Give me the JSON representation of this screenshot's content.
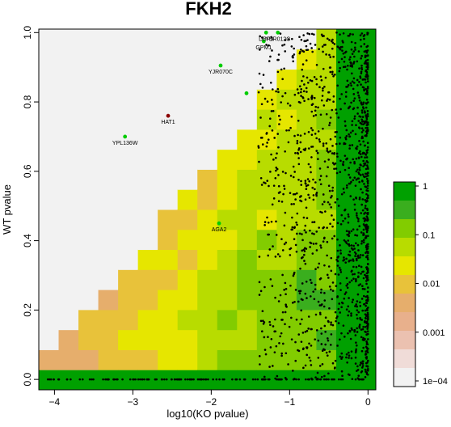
{
  "chart_data": {
    "type": "heatmap",
    "title": "FKH2",
    "xlabel": "log10(KO pvalue)",
    "ylabel": "WT pvalue",
    "xlim": [
      -4.2,
      0.1
    ],
    "ylim": [
      -0.03,
      1.01
    ],
    "x_ticks": [
      "−4",
      "−3",
      "−2",
      "−1",
      "0"
    ],
    "x_tick_values": [
      -4,
      -3,
      -2,
      -1,
      0
    ],
    "y_ticks": [
      "0.0",
      "0.2",
      "0.4",
      "0.6",
      "0.8",
      "1.0"
    ],
    "y_tick_values": [
      0.0,
      0.2,
      0.4,
      0.6,
      0.8,
      1.0
    ],
    "legend": {
      "labels": [
        "1",
        "0.1",
        "0.01",
        "0.001",
        "1e−04"
      ],
      "label_values": [
        1,
        0.1,
        0.01,
        0.001,
        0.0001
      ],
      "colors": [
        "#f2f2f2",
        "#f0dcd8",
        "#ebc1b0",
        "#e8b08c",
        "#e6ae6c",
        "#e8c23a",
        "#e6e600",
        "#b8dc00",
        "#82cc00",
        "#3aae1e",
        "#00a000"
      ]
    },
    "highlighted_genes": [
      {
        "name": "YPL136W",
        "x": -3.1,
        "y": 0.7,
        "color": "#00cc00"
      },
      {
        "name": "HAT1",
        "x": -2.55,
        "y": 0.76,
        "color": "#8b0000"
      },
      {
        "name": "YJR070C",
        "x": -1.88,
        "y": 0.905,
        "color": "#00cc00"
      },
      {
        "name": "AGA2",
        "x": -1.9,
        "y": 0.45,
        "color": "#00cc00"
      },
      {
        "name": "GPM1",
        "x": -1.33,
        "y": 0.975,
        "color": "#00cc00"
      },
      {
        "name": "DBP9",
        "x": -1.3,
        "y": 1.0,
        "color": "#00cc00"
      },
      {
        "name": "YBR012C",
        "x": -1.15,
        "y": 1.0,
        "color": "#00cc00"
      },
      {
        "name": "",
        "x": -1.55,
        "y": 0.825,
        "color": "#00cc00"
      }
    ]
  }
}
